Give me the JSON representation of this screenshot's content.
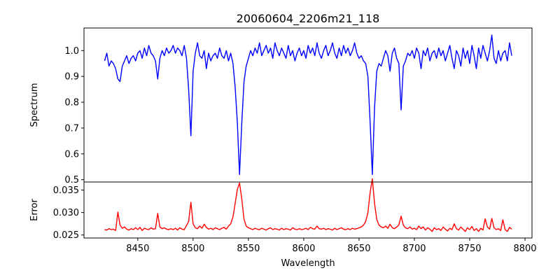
{
  "chart_data": [
    {
      "type": "line",
      "title": "20060604_2206m21_118",
      "xlabel": "",
      "ylabel": "Spectrum",
      "xlim": [
        8401.4,
        8806.3
      ],
      "ylim": [
        0.491,
        1.0875
      ],
      "yticks": [
        "0.5",
        "0.6",
        "0.7",
        "0.8",
        "0.9",
        "1.0"
      ],
      "grid": false,
      "color": "#0000ff",
      "x_start": 8420,
      "x_step": 2,
      "values": [
        0.96,
        0.99,
        0.94,
        0.96,
        0.95,
        0.93,
        0.89,
        0.88,
        0.94,
        0.96,
        0.98,
        0.95,
        0.97,
        0.98,
        0.96,
        0.99,
        1.0,
        0.97,
        1.01,
        0.98,
        1.02,
        0.99,
        0.98,
        0.96,
        0.89,
        0.97,
        1.0,
        0.98,
        1.01,
        0.99,
        1.0,
        1.02,
        0.99,
        1.01,
        1.0,
        0.98,
        1.02,
        0.97,
        0.85,
        0.67,
        0.92,
        0.99,
        1.03,
        0.98,
        0.97,
        1.0,
        0.93,
        0.99,
        0.96,
        0.98,
        0.99,
        0.97,
        1.01,
        0.98,
        0.97,
        1.0,
        0.96,
        0.99,
        0.95,
        0.86,
        0.72,
        0.52,
        0.72,
        0.88,
        0.94,
        0.97,
        1.0,
        0.98,
        1.01,
        0.99,
        1.03,
        0.98,
        1.0,
        1.02,
        0.99,
        1.01,
        0.97,
        1.03,
        1.0,
        0.98,
        1.01,
        0.99,
        0.97,
        1.02,
        0.98,
        1.0,
        0.96,
        0.99,
        1.01,
        0.98,
        1.0,
        0.97,
        1.02,
        0.99,
        1.01,
        0.98,
        1.03,
        0.99,
        0.97,
        1.0,
        1.02,
        0.98,
        1.0,
        1.03,
        0.99,
        0.97,
        1.01,
        0.98,
        1.02,
        0.99,
        1.01,
        0.98,
        1.0,
        1.03,
        0.99,
        0.97,
        0.98,
        0.96,
        0.95,
        0.9,
        0.72,
        0.52,
        0.78,
        0.92,
        0.95,
        0.94,
        0.97,
        1.0,
        0.98,
        0.92,
        0.99,
        1.01,
        0.97,
        0.95,
        0.77,
        0.94,
        0.96,
        0.99,
        0.98,
        1.0,
        0.97,
        1.01,
        0.99,
        0.93,
        1.0,
        0.98,
        1.01,
        0.96,
        0.99,
        1.0,
        0.97,
        1.01,
        0.98,
        1.0,
        0.96,
        0.99,
        1.02,
        0.97,
        0.93,
        1.0,
        0.98,
        0.94,
        1.01,
        0.97,
        1.0,
        0.95,
        1.02,
        0.98,
        0.93,
        1.01,
        0.97,
        1.02,
        0.99,
        0.96,
        1.0,
        1.06,
        0.97,
        0.95,
        1.0,
        0.96,
        0.99,
        1.0,
        0.96,
        1.03,
        0.98
      ]
    },
    {
      "type": "line",
      "title": "",
      "xlabel": "Wavelength",
      "ylabel": "Error",
      "xlim": [
        8401.4,
        8806.3
      ],
      "ylim": [
        0.02433,
        0.0368
      ],
      "yticks": [
        "0.025",
        "0.030",
        "0.035"
      ],
      "xticks": [
        "8450",
        "8500",
        "8550",
        "8600",
        "8650",
        "8700",
        "8750",
        "8800"
      ],
      "grid": false,
      "color": "#ff0000",
      "x_start": 8420,
      "x_step": 2,
      "values": [
        0.0262,
        0.0261,
        0.0264,
        0.0262,
        0.0263,
        0.026,
        0.0301,
        0.0272,
        0.0265,
        0.0268,
        0.0263,
        0.0261,
        0.0264,
        0.0262,
        0.0266,
        0.0262,
        0.0267,
        0.026,
        0.0265,
        0.0263,
        0.0262,
        0.0266,
        0.0263,
        0.0264,
        0.0298,
        0.0268,
        0.0264,
        0.0266,
        0.0263,
        0.0262,
        0.0264,
        0.0262,
        0.0265,
        0.0261,
        0.0266,
        0.0263,
        0.0262,
        0.0271,
        0.028,
        0.0323,
        0.0275,
        0.0266,
        0.0264,
        0.027,
        0.0265,
        0.0274,
        0.0267,
        0.0263,
        0.0265,
        0.0262,
        0.0266,
        0.0264,
        0.0262,
        0.0265,
        0.0267,
        0.0263,
        0.027,
        0.0275,
        0.029,
        0.032,
        0.0352,
        0.0366,
        0.033,
        0.0285,
        0.027,
        0.0266,
        0.0264,
        0.0262,
        0.0265,
        0.0263,
        0.0262,
        0.0265,
        0.0263,
        0.0261,
        0.0264,
        0.0266,
        0.0262,
        0.0264,
        0.0263,
        0.0261,
        0.0265,
        0.0262,
        0.0264,
        0.0263,
        0.0261,
        0.0266,
        0.0263,
        0.0262,
        0.0264,
        0.0262,
        0.0263,
        0.0265,
        0.0262,
        0.0267,
        0.0264,
        0.0263,
        0.027,
        0.0264,
        0.0263,
        0.0265,
        0.0262,
        0.0264,
        0.0263,
        0.0261,
        0.0265,
        0.0262,
        0.0264,
        0.0266,
        0.0263,
        0.0262,
        0.0264,
        0.0262,
        0.0265,
        0.0263,
        0.0264,
        0.0266,
        0.0268,
        0.0272,
        0.028,
        0.03,
        0.0345,
        0.0375,
        0.032,
        0.0285,
        0.0272,
        0.0268,
        0.0266,
        0.027,
        0.0265,
        0.0274,
        0.0266,
        0.0264,
        0.0268,
        0.0272,
        0.0292,
        0.0272,
        0.0266,
        0.0264,
        0.0268,
        0.0263,
        0.0265,
        0.0262,
        0.027,
        0.0264,
        0.0268,
        0.0261,
        0.0266,
        0.0263,
        0.0258,
        0.0266,
        0.0262,
        0.0264,
        0.026,
        0.0268,
        0.0263,
        0.0259,
        0.0265,
        0.0262,
        0.0275,
        0.0264,
        0.0261,
        0.0268,
        0.0263,
        0.0258,
        0.0266,
        0.0262,
        0.0269,
        0.026,
        0.0264,
        0.0258,
        0.0265,
        0.0261,
        0.0286,
        0.0268,
        0.0263,
        0.0287,
        0.0266,
        0.0262,
        0.0264,
        0.026,
        0.0284,
        0.0262,
        0.0258,
        0.0267,
        0.0263
      ]
    }
  ]
}
